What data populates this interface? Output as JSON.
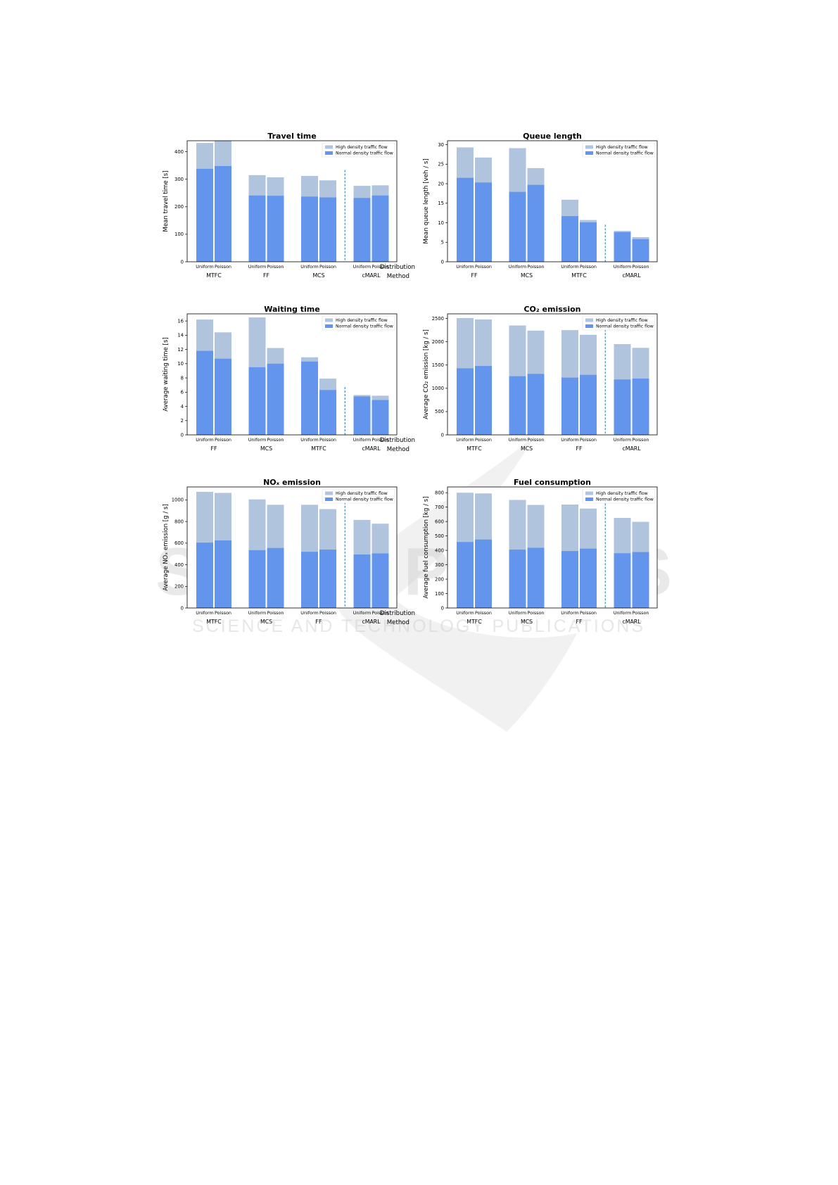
{
  "colors": {
    "high": "#b0c4de",
    "normal": "#6495ed",
    "divider": "#1f77b4"
  },
  "legend": {
    "high": "High density traffic flow",
    "normal": "Normal density traffic flow"
  },
  "axis_titles": {
    "sub": "Distribution",
    "group": "Method"
  },
  "watermark": {
    "big": "SCITEPRESS",
    "small": "SCIENCE AND TECHNOLOGY PUBLICATIONS"
  },
  "chart_data": [
    {
      "type": "bar",
      "title": "Travel time",
      "ylabel": "Mean travel time [s]",
      "ylim": [
        0,
        440
      ],
      "yticks": [
        0,
        100,
        200,
        300,
        400
      ],
      "groups": [
        "MTFC",
        "FF",
        "MCS",
        "cMARL"
      ],
      "subcategories": [
        "Uniform",
        "Poisson"
      ],
      "series": [
        {
          "name": "High density traffic flow",
          "values": [
            [
              432,
              440
            ],
            [
              315,
              307
            ],
            [
              312,
              296
            ],
            [
              276,
              278
            ]
          ]
        },
        {
          "name": "Normal density traffic flow",
          "values": [
            [
              338,
              348
            ],
            [
              241,
              240
            ],
            [
              237,
              234
            ],
            [
              232,
              241
            ]
          ]
        }
      ]
    },
    {
      "type": "bar",
      "title": "Queue length",
      "ylabel": "Mean queue length [veh / s]",
      "ylim": [
        0,
        31
      ],
      "yticks": [
        0,
        5,
        10,
        15,
        20,
        25,
        30
      ],
      "groups": [
        "FF",
        "MCS",
        "MTFC",
        "cMARL"
      ],
      "subcategories": [
        "Uniform",
        "Poisson"
      ],
      "series": [
        {
          "name": "High density traffic flow",
          "values": [
            [
              29.3,
              26.7
            ],
            [
              29.1,
              24.0
            ],
            [
              15.9,
              10.7
            ],
            [
              7.9,
              6.3
            ]
          ]
        },
        {
          "name": "Normal density traffic flow",
          "values": [
            [
              21.5,
              20.3
            ],
            [
              17.9,
              19.7
            ],
            [
              11.7,
              10.1
            ],
            [
              7.6,
              5.8
            ]
          ]
        }
      ]
    },
    {
      "type": "bar",
      "title": "Waiting time",
      "ylabel": "Average waiting time [s]",
      "ylim": [
        0,
        17
      ],
      "yticks": [
        0,
        2,
        4,
        6,
        8,
        10,
        12,
        14,
        16
      ],
      "groups": [
        "FF",
        "MCS",
        "MTFC",
        "cMARL"
      ],
      "subcategories": [
        "Uniform",
        "Poisson"
      ],
      "series": [
        {
          "name": "High density traffic flow",
          "values": [
            [
              16.2,
              14.4
            ],
            [
              16.5,
              12.2
            ],
            [
              10.9,
              7.9
            ],
            [
              5.6,
              5.5
            ]
          ]
        },
        {
          "name": "Normal density traffic flow",
          "values": [
            [
              11.8,
              10.7
            ],
            [
              9.5,
              10.0
            ],
            [
              10.3,
              6.3
            ],
            [
              5.4,
              4.9
            ]
          ]
        }
      ]
    },
    {
      "type": "bar",
      "title": "CO₂ emission",
      "ylabel": "Average CO₂ emission [kg / s]",
      "ylim": [
        0,
        2600
      ],
      "yticks": [
        0,
        500,
        1000,
        1500,
        2000,
        2500
      ],
      "groups": [
        "MTFC",
        "MCS",
        "FF",
        "cMARL"
      ],
      "subcategories": [
        "Uniform",
        "Poisson"
      ],
      "series": [
        {
          "name": "High density traffic flow",
          "values": [
            [
              2510,
              2480
            ],
            [
              2350,
              2240
            ],
            [
              2250,
              2150
            ],
            [
              1950,
              1870
            ]
          ]
        },
        {
          "name": "Normal density traffic flow",
          "values": [
            [
              1430,
              1480
            ],
            [
              1260,
              1310
            ],
            [
              1230,
              1290
            ],
            [
              1190,
              1210
            ]
          ]
        }
      ]
    },
    {
      "type": "bar",
      "title": "NOₓ emission",
      "ylabel": "Average NOₓ emission [g / s]",
      "ylim": [
        0,
        1120
      ],
      "yticks": [
        0,
        200,
        400,
        600,
        800,
        1000
      ],
      "groups": [
        "MTFC",
        "MCS",
        "FF",
        "cMARL"
      ],
      "subcategories": [
        "Uniform",
        "Poisson"
      ],
      "series": [
        {
          "name": "High density traffic flow",
          "values": [
            [
              1075,
              1065
            ],
            [
              1005,
              955
            ],
            [
              955,
              915
            ],
            [
              815,
              780
            ]
          ]
        },
        {
          "name": "Normal density traffic flow",
          "values": [
            [
              605,
              625
            ],
            [
              535,
              555
            ],
            [
              520,
              540
            ],
            [
              495,
              505
            ]
          ]
        }
      ]
    },
    {
      "type": "bar",
      "title": "Fuel consumption",
      "ylabel": "Average fuel consumption [kg / s]",
      "ylim": [
        0,
        840
      ],
      "yticks": [
        0,
        100,
        200,
        300,
        400,
        500,
        600,
        700,
        800
      ],
      "groups": [
        "MTFC",
        "MCS",
        "FF",
        "cMARL"
      ],
      "subcategories": [
        "Uniform",
        "Poisson"
      ],
      "series": [
        {
          "name": "High density traffic flow",
          "values": [
            [
              800,
              795
            ],
            [
              750,
              715
            ],
            [
              718,
              690
            ],
            [
              625,
              598
            ]
          ]
        },
        {
          "name": "Normal density traffic flow",
          "values": [
            [
              458,
              475
            ],
            [
              405,
              418
            ],
            [
              395,
              412
            ],
            [
              380,
              388
            ]
          ]
        }
      ]
    }
  ]
}
